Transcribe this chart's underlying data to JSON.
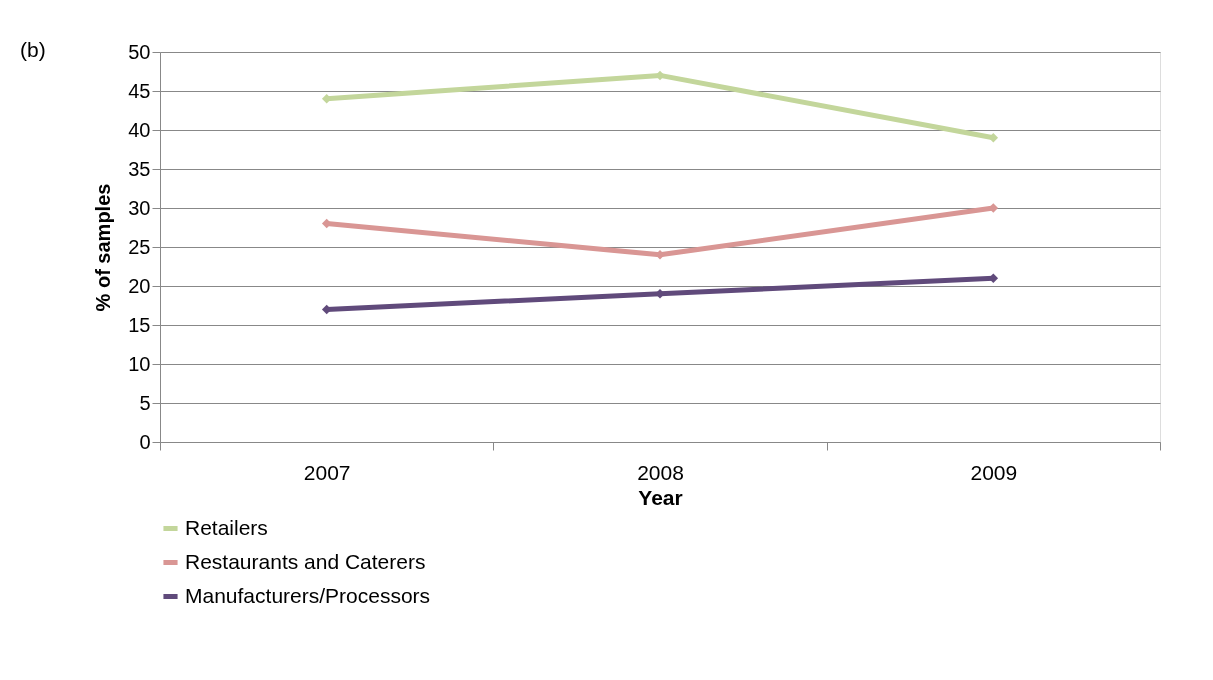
{
  "chart_data": {
    "type": "line",
    "xlabel": "Year",
    "ylabel": "% of samples",
    "annotations": [
      "(b)"
    ],
    "categories": [
      "2007",
      "2008",
      "2009"
    ],
    "series": [
      {
        "name": "Retailers",
        "color": "#c3d69b",
        "values": [
          44,
          47,
          39
        ]
      },
      {
        "name": "Restaurants and Caterers",
        "color": "#d99694",
        "values": [
          28,
          24,
          30
        ]
      },
      {
        "name": "Manufacturers/Processors",
        "color": "#604a7b",
        "values": [
          17,
          19,
          21
        ]
      }
    ],
    "ylim": [
      0,
      50
    ],
    "yticks": [
      0,
      5,
      10,
      15,
      20,
      25,
      30,
      35,
      40,
      45,
      50
    ],
    "grid": "y",
    "legend": "bottom left",
    "marker": "diamond",
    "line_style": "solid"
  }
}
